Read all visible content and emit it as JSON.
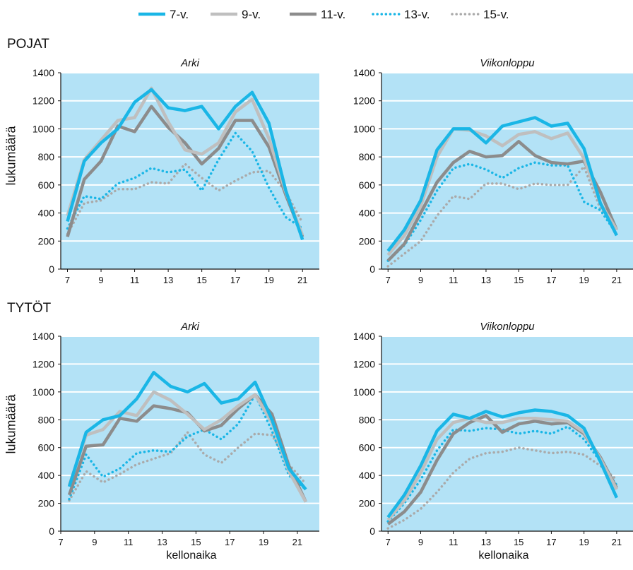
{
  "legend": [
    {
      "name": "7-v.",
      "color": "#1ab6e6",
      "style": "solid-thick"
    },
    {
      "name": "9-v.",
      "color": "#bfbfbf",
      "style": "solid-thick"
    },
    {
      "name": "11-v.",
      "color": "#8c8c8c",
      "style": "solid-thick"
    },
    {
      "name": "13-v.",
      "color": "#1ab6e6",
      "style": "dotted"
    },
    {
      "name": "15-v.",
      "color": "#aaaaaa",
      "style": "dotted"
    }
  ],
  "groups": {
    "boys": "POJAT",
    "girls": "TYTÖT"
  },
  "axis": {
    "ylabel": "lukumäärä",
    "xlabel": "kellonaika"
  },
  "colors": {
    "plot_bg": "#b3e2f6",
    "gridline": "#ffffff"
  },
  "chart_data": [
    {
      "type": "line",
      "title": "Arki",
      "group": "POJAT",
      "x": [
        7,
        8,
        9,
        10,
        11,
        12,
        13,
        14,
        15,
        16,
        17,
        18,
        19,
        20,
        21
      ],
      "xticks": [
        7,
        9,
        11,
        13,
        15,
        17,
        19,
        21
      ],
      "yticks": [
        0,
        200,
        400,
        600,
        800,
        1000,
        1200,
        1400
      ],
      "ylim": [
        0,
        1400
      ],
      "xlim": [
        6.6,
        22
      ],
      "grid": true,
      "series": [
        {
          "name": "7-v.",
          "values": [
            340,
            770,
            900,
            1000,
            1190,
            1280,
            1150,
            1130,
            1160,
            1000,
            1160,
            1260,
            1040,
            560,
            210
          ]
        },
        {
          "name": "9-v.",
          "values": [
            380,
            780,
            920,
            1060,
            1080,
            1290,
            1050,
            850,
            820,
            900,
            1120,
            1210,
            930,
            550,
            240
          ]
        },
        {
          "name": "11-v.",
          "values": [
            230,
            640,
            770,
            1020,
            980,
            1160,
            1010,
            900,
            750,
            860,
            1060,
            1060,
            870,
            530,
            230
          ]
        },
        {
          "name": "13-v.",
          "values": [
            290,
            520,
            500,
            610,
            650,
            720,
            690,
            710,
            560,
            780,
            970,
            840,
            580,
            370,
            290
          ]
        },
        {
          "name": "15-v.",
          "values": [
            250,
            470,
            490,
            570,
            570,
            620,
            610,
            750,
            650,
            560,
            630,
            690,
            700,
            550,
            330
          ]
        }
      ]
    },
    {
      "type": "line",
      "title": "Viikonloppu",
      "group": "POJAT",
      "x": [
        7,
        8,
        9,
        10,
        11,
        12,
        13,
        14,
        15,
        16,
        17,
        18,
        19,
        20,
        21
      ],
      "xticks": [
        7,
        9,
        11,
        13,
        15,
        17,
        19,
        21
      ],
      "yticks": [
        0,
        200,
        400,
        600,
        800,
        1000,
        1200,
        1400
      ],
      "ylim": [
        0,
        1400
      ],
      "xlim": [
        6.6,
        22
      ],
      "grid": true,
      "series": [
        {
          "name": "7-v.",
          "values": [
            130,
            280,
            490,
            850,
            1000,
            1000,
            900,
            1020,
            1050,
            1080,
            1020,
            1040,
            860,
            470,
            240
          ]
        },
        {
          "name": "9-v.",
          "values": [
            100,
            240,
            450,
            800,
            1000,
            990,
            950,
            880,
            960,
            980,
            930,
            970,
            790,
            470,
            280
          ]
        },
        {
          "name": "11-v.",
          "values": [
            60,
            180,
            400,
            620,
            760,
            840,
            800,
            810,
            910,
            810,
            760,
            750,
            770,
            550,
            280
          ]
        },
        {
          "name": "13-v.",
          "values": [
            60,
            170,
            350,
            560,
            720,
            750,
            710,
            650,
            720,
            760,
            740,
            740,
            480,
            420,
            250
          ]
        },
        {
          "name": "15-v.",
          "values": [
            20,
            110,
            200,
            380,
            520,
            500,
            610,
            610,
            570,
            610,
            600,
            600,
            730,
            430,
            300
          ]
        }
      ]
    },
    {
      "type": "line",
      "title": "Arki",
      "group": "TYTÖT",
      "x": [
        7.5,
        8.5,
        9.5,
        10.5,
        11.5,
        12.5,
        13.5,
        14.5,
        15.5,
        16.5,
        17.5,
        18.5,
        19.5,
        20.5,
        21.5
      ],
      "xticks": [
        7,
        9,
        11,
        13,
        15,
        17,
        19,
        21
      ],
      "yticks": [
        0,
        200,
        400,
        600,
        800,
        1000,
        1200,
        1400
      ],
      "ylim": [
        0,
        1400
      ],
      "xlim": [
        7,
        22.3
      ],
      "grid": true,
      "series": [
        {
          "name": "7-v.",
          "values": [
            320,
            710,
            800,
            830,
            950,
            1140,
            1040,
            1000,
            1060,
            920,
            950,
            1070,
            800,
            450,
            300
          ]
        },
        {
          "name": "9-v.",
          "values": [
            330,
            690,
            730,
            860,
            830,
            1000,
            940,
            840,
            730,
            800,
            900,
            980,
            780,
            430,
            210
          ]
        },
        {
          "name": "11-v.",
          "values": [
            260,
            610,
            620,
            810,
            790,
            900,
            880,
            850,
            720,
            760,
            880,
            980,
            840,
            470,
            210
          ]
        },
        {
          "name": "13-v.",
          "values": [
            230,
            550,
            390,
            450,
            560,
            580,
            570,
            680,
            730,
            660,
            770,
            980,
            720,
            400,
            300
          ]
        },
        {
          "name": "15-v.",
          "values": [
            220,
            430,
            350,
            410,
            480,
            520,
            560,
            710,
            550,
            490,
            600,
            700,
            690,
            480,
            340
          ]
        }
      ]
    },
    {
      "type": "line",
      "title": "Viikonloppu",
      "group": "TYTÖT",
      "x": [
        7,
        8,
        9,
        10,
        11,
        12,
        13,
        14,
        15,
        16,
        17,
        18,
        19,
        20,
        21
      ],
      "xticks": [
        7,
        9,
        11,
        13,
        15,
        17,
        19,
        21
      ],
      "yticks": [
        0,
        200,
        400,
        600,
        800,
        1000,
        1200,
        1400
      ],
      "ylim": [
        0,
        1400
      ],
      "xlim": [
        6.6,
        22
      ],
      "grid": true,
      "series": [
        {
          "name": "7-v.",
          "values": [
            100,
            260,
            470,
            720,
            840,
            810,
            860,
            820,
            850,
            870,
            860,
            830,
            740,
            500,
            240
          ]
        },
        {
          "name": "9-v.",
          "values": [
            80,
            220,
            420,
            660,
            780,
            810,
            780,
            780,
            810,
            810,
            800,
            790,
            710,
            520,
            300
          ]
        },
        {
          "name": "11-v.",
          "values": [
            50,
            140,
            280,
            510,
            700,
            780,
            830,
            710,
            770,
            790,
            770,
            780,
            700,
            530,
            310
          ]
        },
        {
          "name": "13-v.",
          "values": [
            70,
            200,
            370,
            580,
            730,
            720,
            740,
            730,
            700,
            720,
            700,
            750,
            660,
            500,
            330
          ]
        },
        {
          "name": "15-v.",
          "values": [
            20,
            80,
            160,
            280,
            420,
            520,
            560,
            570,
            600,
            580,
            560,
            570,
            550,
            470,
            370
          ]
        }
      ]
    }
  ]
}
